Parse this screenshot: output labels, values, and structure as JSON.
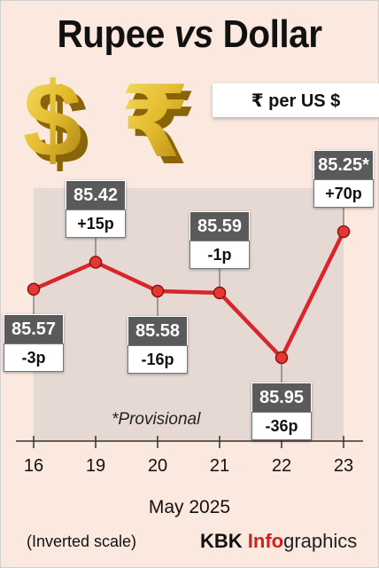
{
  "title": {
    "part1": "Rupee ",
    "vs": "vs",
    "part2": " Dollar"
  },
  "unit_label": "₹ per US $",
  "credit": {
    "kbk": "KBK ",
    "info": "Info",
    "graphics": "graphics"
  },
  "note_provisional": "*Provisional",
  "note_scale": "(Inverted scale)",
  "colors": {
    "line": "#d8262b",
    "area": "#e2d6d2",
    "background": "#fbe9df",
    "label_dark": "#5a5a5a",
    "dollar_gold": "#e7c23b"
  },
  "icons": [
    "dollar-symbol-3d-icon",
    "rupee-symbol-3d-icon"
  ],
  "chart_data": {
    "type": "line",
    "inverted_y": true,
    "xlabel": "May 2025",
    "categories": [
      "16",
      "19",
      "20",
      "21",
      "22",
      "23"
    ],
    "values": [
      85.57,
      85.42,
      85.58,
      85.59,
      85.95,
      85.25
    ],
    "value_labels": [
      "85.57",
      "85.42",
      "85.58",
      "85.59",
      "85.95",
      "85.25*"
    ],
    "change_labels": [
      "-3p",
      "+15p",
      "-16p",
      "-1p",
      "-36p",
      "+70p"
    ],
    "label_position": [
      "below",
      "above",
      "below",
      "above",
      "below",
      "above"
    ],
    "grid": false,
    "legend": "none"
  }
}
